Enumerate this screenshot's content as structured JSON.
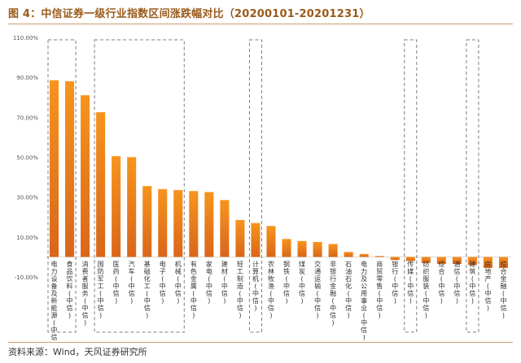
{
  "page": {
    "title": "图 4：中信证券一级行业指数区间涨跌幅对比（20200101-20201231）",
    "source": "资料来源：Wind，天风证券研究所"
  },
  "colors": {
    "bar_top": "#f7941d",
    "bar_bottom": "#d9661a",
    "accent": "#9a5a1a"
  },
  "chart_data": {
    "type": "bar",
    "title": "中信证券一级行业指数区间涨跌幅对比（20200101-20201231）",
    "xlabel": "",
    "ylabel": "",
    "ylim": [
      -10,
      110
    ],
    "yticks": [
      -10,
      10,
      30,
      50,
      70,
      90,
      110
    ],
    "ytick_labels": [
      "-10.00%",
      "10.00%",
      "30.00%",
      "50.00%",
      "70.00%",
      "90.00%",
      "110.00%"
    ],
    "grid": false,
    "categories": [
      "电力设备及新能源(中信)",
      "食品饮料(中信)",
      "消费者服务(中信)",
      "国防军工(中信)",
      "医药(中信)",
      "汽车(中信)",
      "基础化工(中信)",
      "电子(中信)",
      "机械(中信)",
      "有色金属(中信)",
      "家电(中信)",
      "建材(中信)",
      "轻工制造(中信)",
      "计算机(中信)",
      "农林牧渔(中信)",
      "钢铁(中信)",
      "煤炭(中信)",
      "交通运输(中信)",
      "非银行金融(中信)",
      "石油石化(中信)",
      "电力及公用事业(中信)",
      "商贸零售(中信)",
      "银行(中信)",
      "传媒(中信)",
      "纺织服装(中信)",
      "综合(中信)",
      "通信(中信)",
      "建筑(中信)",
      "房地产(中信)",
      "综合金融(中信)"
    ],
    "values": [
      88.5,
      88.0,
      81.0,
      72.5,
      50.5,
      50.0,
      35.5,
      34.0,
      33.5,
      33.0,
      32.5,
      28.5,
      18.5,
      17.0,
      15.5,
      9.0,
      8.0,
      7.5,
      6.5,
      2.5,
      1.5,
      0.5,
      -1.5,
      -2.0,
      -3.0,
      -3.5,
      -3.5,
      -4.0,
      -5.5,
      -5.5
    ],
    "highlight_groups": [
      {
        "from": 0,
        "to": 1
      },
      {
        "from": 3,
        "to": 8
      },
      {
        "from": 13,
        "to": 13
      },
      {
        "from": 23,
        "to": 23
      },
      {
        "from": 27,
        "to": 27
      }
    ]
  }
}
